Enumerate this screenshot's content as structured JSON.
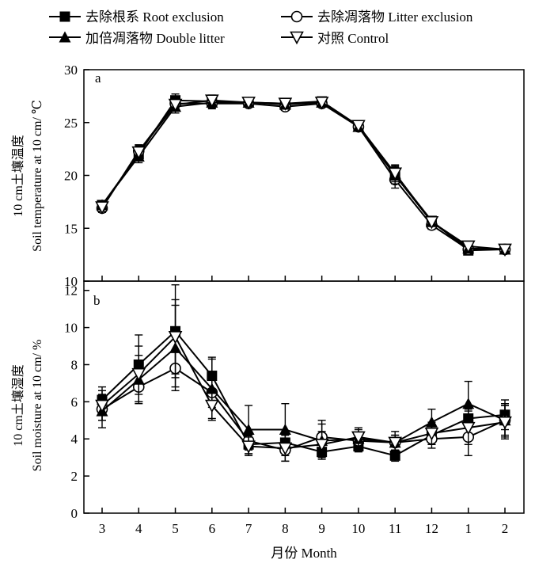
{
  "legend": [
    {
      "key": "root",
      "label": "去除根系 Root exclusion",
      "marker": "square"
    },
    {
      "key": "litter",
      "label": "去除凋落物 Litter exclusion",
      "marker": "circle"
    },
    {
      "key": "double",
      "label": "加倍凋落物 Double litter",
      "marker": "triangle-up"
    },
    {
      "key": "control",
      "label": "对照 Control",
      "marker": "triangle-down"
    }
  ],
  "xlabel": "月份 Month",
  "chart_data": [
    {
      "type": "line",
      "panel": "a",
      "ylabel_cn": "10 cm土壤温度",
      "ylabel_en": "Soil temperature at 10 cm/ ℃",
      "ylim": [
        10,
        30
      ],
      "yticks": [
        10,
        15,
        20,
        25,
        30
      ],
      "categories": [
        "3",
        "4",
        "5",
        "6",
        "7",
        "8",
        "9",
        "10",
        "11",
        "12",
        "1",
        "2"
      ],
      "series": [
        {
          "name": "去除根系 Root exclusion",
          "marker": "square",
          "values": [
            17.2,
            22.0,
            27.1,
            27.0,
            26.9,
            26.8,
            27.0,
            24.7,
            20.1,
            15.7,
            12.9,
            13.0
          ],
          "err": [
            0.4,
            0.6,
            0.6,
            0.5,
            0.3,
            0.3,
            0.3,
            0.4,
            0.8,
            0.4,
            0.3,
            0.2
          ]
        },
        {
          "name": "去除凋落物 Litter exclusion",
          "marker": "circle",
          "values": [
            16.9,
            22.3,
            26.8,
            26.8,
            26.8,
            26.5,
            26.8,
            24.6,
            19.6,
            15.3,
            13.0,
            13.0
          ],
          "err": [
            0.4,
            0.6,
            0.6,
            0.5,
            0.3,
            0.3,
            0.3,
            0.4,
            0.8,
            0.4,
            0.3,
            0.2
          ]
        },
        {
          "name": "加倍凋落物 Double litter",
          "marker": "triangle-up",
          "values": [
            17.2,
            21.8,
            26.5,
            26.9,
            26.9,
            26.7,
            26.9,
            24.6,
            20.0,
            15.6,
            13.1,
            13.0
          ],
          "err": [
            0.4,
            0.6,
            0.6,
            0.5,
            0.3,
            0.3,
            0.3,
            0.4,
            0.8,
            0.4,
            0.3,
            0.2
          ]
        },
        {
          "name": "对照 Control",
          "marker": "triangle-down",
          "values": [
            17.0,
            22.2,
            26.7,
            27.1,
            26.9,
            26.8,
            26.9,
            24.7,
            20.2,
            15.6,
            13.3,
            13.0
          ],
          "err": [
            0.4,
            0.6,
            0.6,
            0.5,
            0.3,
            0.3,
            0.3,
            0.4,
            0.8,
            0.4,
            0.3,
            0.2
          ]
        }
      ]
    },
    {
      "type": "line",
      "panel": "b",
      "ylabel_cn": "10 cm土壤湿度",
      "ylabel_en": "Soil moisture at 10 cm/ %",
      "ylim": [
        0,
        12.5
      ],
      "yticks": [
        0,
        2,
        4,
        6,
        8,
        10,
        12
      ],
      "categories": [
        "3",
        "4",
        "5",
        "6",
        "7",
        "8",
        "9",
        "10",
        "11",
        "12",
        "1",
        "2"
      ],
      "series": [
        {
          "name": "去除根系 Root exclusion",
          "marker": "square",
          "values": [
            6.1,
            8.0,
            9.8,
            7.4,
            3.7,
            3.8,
            3.3,
            3.6,
            3.1,
            4.2,
            5.1,
            5.3
          ],
          "err": [
            0.7,
            1.6,
            2.5,
            1.0,
            0.5,
            0.4,
            0.4,
            0.3,
            0.3,
            0.5,
            0.5,
            0.8
          ]
        },
        {
          "name": "去除凋落物 Litter exclusion",
          "marker": "circle",
          "values": [
            5.6,
            6.8,
            7.8,
            6.5,
            3.9,
            3.4,
            4.1,
            3.9,
            3.8,
            4.0,
            4.1,
            5.0
          ],
          "err": [
            0.6,
            0.8,
            1.0,
            0.8,
            0.5,
            0.6,
            0.9,
            0.4,
            0.4,
            0.5,
            1.0,
            0.8
          ]
        },
        {
          "name": "加倍凋落物 Double litter",
          "marker": "triangle-up",
          "values": [
            5.5,
            7.2,
            8.9,
            6.7,
            4.5,
            4.5,
            3.9,
            4.0,
            3.8,
            4.9,
            5.9,
            5.0
          ],
          "err": [
            0.9,
            1.3,
            2.3,
            1.6,
            1.3,
            1.4,
            0.9,
            0.5,
            0.6,
            0.7,
            1.2,
            0.9
          ]
        },
        {
          "name": "对照 Control",
          "marker": "triangle-down",
          "values": [
            5.8,
            7.5,
            9.5,
            5.8,
            3.6,
            3.5,
            3.7,
            4.1,
            3.8,
            4.3,
            4.6,
            4.9
          ],
          "err": [
            0.8,
            1.5,
            2.0,
            0.8,
            0.5,
            0.7,
            0.7,
            0.5,
            0.4,
            0.6,
            0.9,
            0.9
          ]
        }
      ]
    }
  ]
}
